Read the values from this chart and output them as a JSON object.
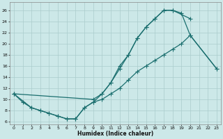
{
  "xlabel": "Humidex (Indice chaleur)",
  "xlim": [
    -0.5,
    23.5
  ],
  "ylim": [
    5.5,
    27.5
  ],
  "yticks": [
    6,
    8,
    10,
    12,
    14,
    16,
    18,
    20,
    22,
    24,
    26
  ],
  "xticks": [
    0,
    1,
    2,
    3,
    4,
    5,
    6,
    7,
    8,
    9,
    10,
    11,
    12,
    13,
    14,
    15,
    16,
    17,
    18,
    19,
    20,
    21,
    22,
    23
  ],
  "bg_color": "#cce8e8",
  "grid_color": "#aacccc",
  "line_color": "#1a6e6e",
  "curve1_x": [
    0,
    1,
    2,
    3,
    4,
    5,
    6,
    7,
    8,
    9,
    10,
    11,
    12,
    13,
    14,
    15,
    16,
    17,
    18,
    20
  ],
  "curve1_y": [
    11,
    9.5,
    8.5,
    8,
    7.5,
    7,
    6.5,
    6.5,
    8.5,
    9.5,
    11,
    13,
    16,
    18,
    21,
    23,
    24.5,
    26,
    26,
    24.5
  ],
  "curve2_x": [
    0,
    9,
    10,
    11,
    12,
    13,
    14,
    15,
    16,
    17,
    18,
    19,
    20,
    23
  ],
  "curve2_y": [
    11,
    10,
    11,
    13,
    15.5,
    18,
    21,
    23,
    24.5,
    26,
    26,
    25.5,
    21.5,
    15.5
  ],
  "curve3_x": [
    0,
    2,
    3,
    4,
    5,
    6,
    7,
    8,
    9,
    10,
    11,
    12,
    13,
    14,
    15,
    16,
    17,
    18,
    19,
    20,
    23
  ],
  "curve3_y": [
    11,
    8.5,
    8,
    7.5,
    7,
    6.5,
    6.5,
    8.5,
    9.5,
    10,
    11,
    12,
    13.5,
    15,
    16,
    17,
    18,
    19,
    20,
    21.5,
    15.5
  ]
}
